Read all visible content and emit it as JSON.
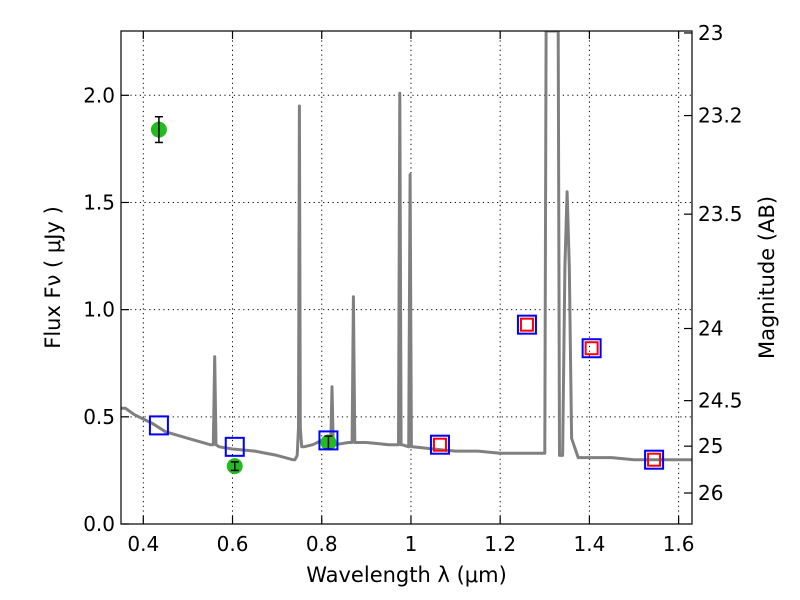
{
  "chart_data": {
    "type": "scatter",
    "xlabel": "Wavelength  λ (μm)",
    "ylabel": "Flux  Fν  ( μJy )",
    "y2label": "Magnitude (AB)",
    "xlim": [
      0.35,
      1.63
    ],
    "ylim": [
      0.0,
      2.3
    ],
    "grid": true,
    "x_ticks": [
      0.4,
      0.6,
      0.8,
      1.0,
      1.2,
      1.4,
      1.6
    ],
    "x_tick_labels": [
      "0.4",
      "0.6",
      "0.8",
      "1",
      "1.2",
      "1.4",
      "1.6"
    ],
    "y_ticks": [
      0.0,
      0.5,
      1.0,
      1.5,
      2.0
    ],
    "y_tick_labels": [
      "0.0",
      "0.5",
      "1.0",
      "1.5",
      "2.0"
    ],
    "y2_ticks": [
      23,
      23.2,
      23.5,
      24,
      24.5,
      25,
      26
    ],
    "y2_tick_labels": [
      "23",
      "23.2",
      "23.5",
      "24",
      "24.5",
      "25",
      "26"
    ],
    "series": [
      {
        "type": "line",
        "color": "#808080",
        "x": [
          0.35,
          0.36,
          0.38,
          0.4,
          0.42,
          0.45,
          0.5,
          0.55,
          0.557,
          0.56,
          0.563,
          0.57,
          0.6,
          0.65,
          0.7,
          0.735,
          0.74,
          0.745,
          0.748,
          0.75,
          0.752,
          0.755,
          0.76,
          0.78,
          0.8,
          0.81,
          0.815,
          0.82,
          0.823,
          0.826,
          0.83,
          0.86,
          0.868,
          0.871,
          0.874,
          0.88,
          0.9,
          0.95,
          0.972,
          0.975,
          0.978,
          0.98,
          0.995,
          0.998,
          1.001,
          1.004,
          1.05,
          1.1,
          1.15,
          1.2,
          1.25,
          1.29,
          1.3,
          1.303,
          1.308,
          1.326,
          1.33,
          1.333,
          1.34,
          1.345,
          1.35,
          1.355,
          1.36,
          1.375,
          1.4,
          1.45,
          1.5,
          1.55,
          1.6,
          1.63
        ],
        "y": [
          0.54,
          0.54,
          0.51,
          0.49,
          0.47,
          0.43,
          0.4,
          0.37,
          0.37,
          0.78,
          0.37,
          0.36,
          0.35,
          0.34,
          0.32,
          0.3,
          0.3,
          0.32,
          0.45,
          1.95,
          0.45,
          0.36,
          0.36,
          0.37,
          0.39,
          0.39,
          0.38,
          0.36,
          0.64,
          0.36,
          0.37,
          0.38,
          0.38,
          1.06,
          0.38,
          0.38,
          0.38,
          0.37,
          0.37,
          2.01,
          0.37,
          0.37,
          0.36,
          1.63,
          0.36,
          0.36,
          0.35,
          0.34,
          0.34,
          0.33,
          0.33,
          0.33,
          0.33,
          2.3,
          2.3,
          2.3,
          2.3,
          0.32,
          0.32,
          1.2,
          1.55,
          1.2,
          0.4,
          0.31,
          0.31,
          0.31,
          0.3,
          0.3,
          0.3,
          0.3
        ]
      },
      {
        "type": "scatter",
        "marker": "circle",
        "color": "#22bb22",
        "x": [
          0.435,
          0.605,
          0.815
        ],
        "y": [
          1.84,
          0.27,
          0.38
        ],
        "yerr": [
          0.06,
          0.02,
          0.03
        ]
      },
      {
        "type": "scatter",
        "marker": "square",
        "color": "#0000ff",
        "x": [
          0.435,
          0.605,
          0.815,
          1.065,
          1.26,
          1.405,
          1.545
        ],
        "y": [
          0.46,
          0.36,
          0.39,
          0.37,
          0.93,
          0.82,
          0.3
        ]
      },
      {
        "type": "scatter",
        "marker": "square",
        "color": "#ff0000",
        "x": [
          1.065,
          1.26,
          1.405,
          1.545
        ],
        "y": [
          0.37,
          0.93,
          0.82,
          0.3
        ]
      }
    ]
  }
}
